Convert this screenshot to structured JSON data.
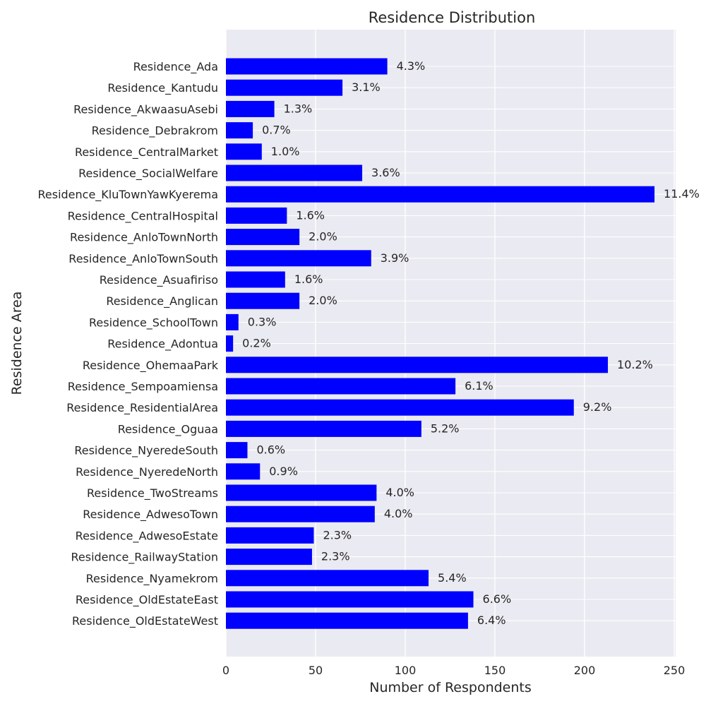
{
  "chart_data": {
    "type": "bar",
    "orientation": "horizontal",
    "title": "Residence Distribution",
    "xlabel": "Number of Respondents",
    "ylabel": "Residence Area",
    "xlim": [
      0,
      250
    ],
    "xticks": [
      0,
      50,
      100,
      150,
      200,
      250
    ],
    "grid": true,
    "bar_color": "#0000ff",
    "background_color": "#eaeaf2",
    "categories": [
      "Residence_Ada",
      "Residence_Kantudu",
      "Residence_AkwaasuAsebi",
      "Residence_Debrakrom",
      "Residence_CentralMarket",
      "Residence_SocialWelfare",
      "Residence_KluTownYawKyerema",
      "Residence_CentralHospital",
      "Residence_AnloTownNorth",
      "Residence_AnloTownSouth",
      "Residence_Asuafiriso",
      "Residence_Anglican",
      "Residence_SchoolTown",
      "Residence_Adontua",
      "Residence_OhemaaPark",
      "Residence_Sempoamiensa",
      "Residence_ResidentialArea",
      "Residence_Oguaa",
      "Residence_NyeredeSouth",
      "Residence_NyeredeNorth",
      "Residence_TwoStreams",
      "Residence_AdwesoTown",
      "Residence_AdwesoEstate",
      "Residence_RailwayStation",
      "Residence_Nyamekrom",
      "Residence_OldEstateEast",
      "Residence_OldEstateWest"
    ],
    "values": [
      90,
      65,
      27,
      15,
      20,
      76,
      239,
      34,
      41,
      81,
      33,
      41,
      7,
      4,
      213,
      128,
      194,
      109,
      12,
      19,
      84,
      83,
      49,
      48,
      113,
      138,
      135
    ],
    "labels": [
      "4.3%",
      "3.1%",
      "1.3%",
      "0.7%",
      "1.0%",
      "3.6%",
      "11.4%",
      "1.6%",
      "2.0%",
      "3.9%",
      "1.6%",
      "2.0%",
      "0.3%",
      "0.2%",
      "10.2%",
      "6.1%",
      "9.2%",
      "5.2%",
      "0.6%",
      "0.9%",
      "4.0%",
      "4.0%",
      "2.3%",
      "2.3%",
      "5.4%",
      "6.6%",
      "6.4%"
    ]
  }
}
